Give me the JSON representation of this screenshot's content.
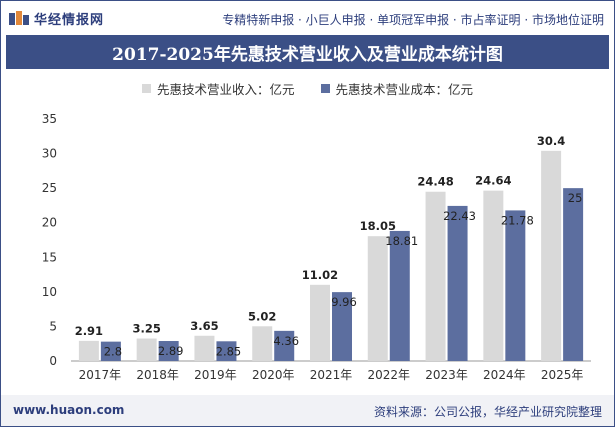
{
  "header": {
    "logo_text": "华经情报网",
    "links": "专精特新申报 · 小巨人申报 · 单项冠军申报 · 市占率证明 · 市场地位证明"
  },
  "footer": {
    "url": "www.huaon.com",
    "source": "资料来源：公司公报，华经产业研究院整理"
  },
  "colors": {
    "brand": "#3b4f86",
    "revenue": "#d9d9d9",
    "cost": "#5c6e9f"
  },
  "chart_data": {
    "type": "bar",
    "title": "2017-2025年先惠技术营业收入及营业成本统计图",
    "categories": [
      "2017年",
      "2018年",
      "2019年",
      "2020年",
      "2021年",
      "2022年",
      "2023年",
      "2024年",
      "2025年"
    ],
    "series": [
      {
        "name": "先惠技术营业收入：亿元",
        "values": [
          2.91,
          3.25,
          3.65,
          5.02,
          11.02,
          18.05,
          24.48,
          24.64,
          30.4
        ],
        "labels": [
          "2.91",
          "3.25",
          "3.65",
          "5.02",
          "11.02",
          "18.05",
          "24.48",
          "24.64",
          "30.4"
        ]
      },
      {
        "name": "先惠技术营业成本：亿元",
        "values": [
          2.8,
          2.89,
          2.85,
          4.36,
          9.96,
          18.81,
          22.43,
          21.78,
          25
        ],
        "labels": [
          "2.8",
          "2.89",
          "2.85",
          "4.36",
          "9.96",
          "18.81",
          "22.43",
          "21.78",
          "25"
        ]
      }
    ],
    "ylim": [
      0,
      35
    ],
    "yticks": [
      "0",
      "5",
      "10",
      "15",
      "20",
      "25",
      "30",
      "35"
    ],
    "grid": false,
    "legend_position": "top-center"
  }
}
